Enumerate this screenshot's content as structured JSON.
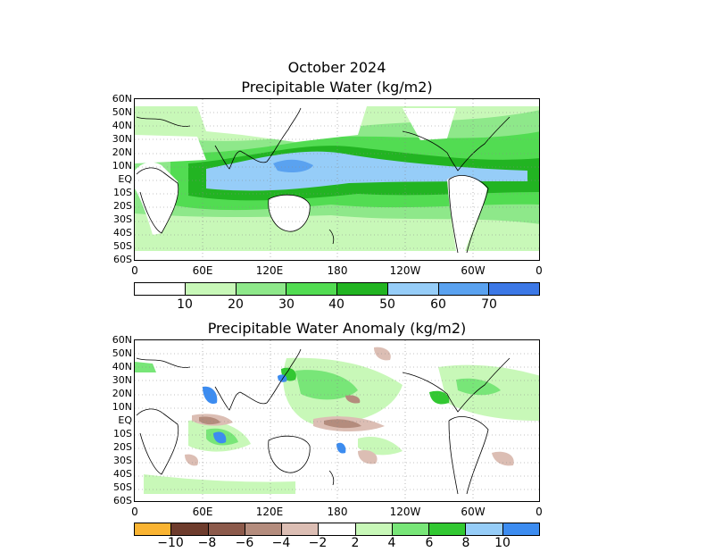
{
  "top": {
    "title_line1": "October 2024",
    "title_line2": "Precipitable Water (kg/m2)",
    "colorbar": {
      "colors": [
        "#ffffff",
        "#c8f8b8",
        "#8ee88a",
        "#52dc52",
        "#22b422",
        "#96cdf8",
        "#5aa2f0",
        "#3c78e6"
      ],
      "labels": [
        "10",
        "20",
        "30",
        "40",
        "50",
        "60",
        "70"
      ]
    }
  },
  "bottom": {
    "title": "Precipitable Water Anomaly (kg/m2)",
    "colorbar": {
      "colors": [
        "#fab432",
        "#6e3c2d",
        "#8c5a4b",
        "#b48c7d",
        "#dcbeb4",
        "#ffffff",
        "#c8f8b8",
        "#78e678",
        "#32c832",
        "#96cdf8",
        "#3c8cf0"
      ],
      "labels": [
        "−10",
        "−8",
        "−6",
        "−4",
        "−2",
        "2",
        "4",
        "6",
        "8",
        "10"
      ]
    }
  },
  "lat_labels": [
    "60N",
    "50N",
    "40N",
    "30N",
    "20N",
    "10N",
    "EQ",
    "10S",
    "20S",
    "30S",
    "40S",
    "50S",
    "60S"
  ],
  "lon_labels": [
    "0",
    "60E",
    "120E",
    "180",
    "120W",
    "60W",
    "0"
  ],
  "chart_data": [
    {
      "type": "heatmap",
      "title": "Precipitable Water (kg/m2)",
      "month": "October 2024",
      "x_range": [
        "0",
        "0"
      ],
      "y_range": [
        "60S",
        "60N"
      ],
      "colorbar_bounds": [
        10,
        20,
        30,
        40,
        50,
        60,
        70
      ],
      "units": "kg/m2"
    },
    {
      "type": "heatmap",
      "title": "Precipitable Water Anomaly (kg/m2)",
      "x_range": [
        "0",
        "0"
      ],
      "y_range": [
        "60S",
        "60N"
      ],
      "colorbar_bounds": [
        -10,
        -8,
        -6,
        -4,
        -2,
        2,
        4,
        6,
        8,
        10
      ],
      "units": "kg/m2"
    }
  ]
}
